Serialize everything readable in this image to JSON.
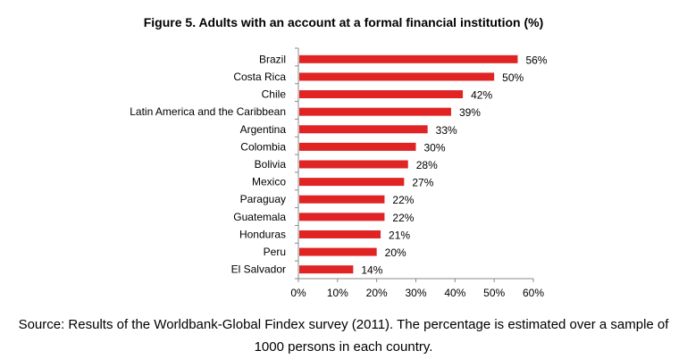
{
  "chart_data": {
    "type": "bar",
    "orientation": "horizontal",
    "title": "Figure 5. Adults with an account at a formal financial institution (%)",
    "categories": [
      "Brazil",
      "Costa Rica",
      "Chile",
      "Latin America and the Caribbean",
      "Argentina",
      "Colombia",
      "Bolivia",
      "Mexico",
      "Paraguay",
      "Guatemala",
      "Honduras",
      "Peru",
      "El Salvador"
    ],
    "values": [
      56,
      50,
      42,
      39,
      33,
      30,
      28,
      27,
      22,
      22,
      21,
      20,
      14
    ],
    "data_labels": [
      "56%",
      "50%",
      "42%",
      "39%",
      "33%",
      "30%",
      "28%",
      "27%",
      "22%",
      "22%",
      "21%",
      "20%",
      "14%"
    ],
    "xlim": [
      0,
      60
    ],
    "x_ticks": [
      "0%",
      "10%",
      "20%",
      "30%",
      "40%",
      "50%",
      "60%"
    ],
    "xlabel": "",
    "ylabel": "",
    "grid": false,
    "bar_color": "#e02424"
  },
  "source": {
    "line1": "Source: Results of the Worldbank-Global Findex survey (2011). The percentage is estimated over a sample of",
    "line2": "1000 persons in each country."
  }
}
